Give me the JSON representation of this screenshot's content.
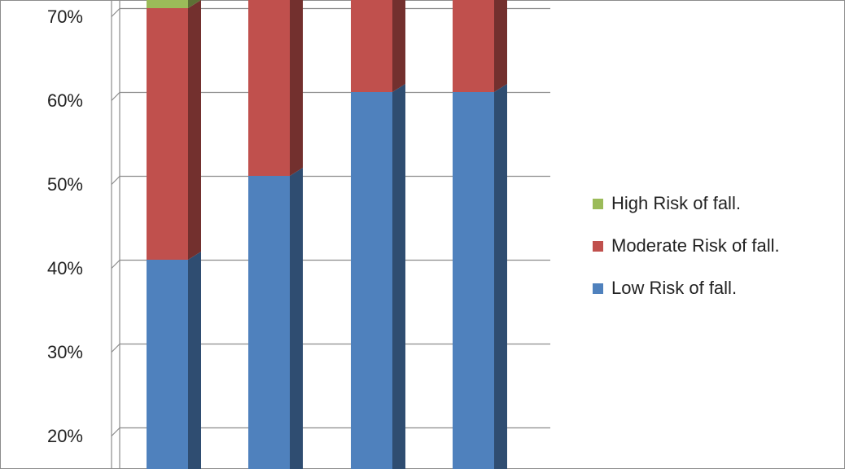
{
  "chart_data": {
    "type": "bar",
    "stacked": true,
    "three_d": true,
    "categories": [
      "",
      "",
      "",
      ""
    ],
    "series": [
      {
        "name": "Low Risk of fall.",
        "color": "#4f81bd",
        "values": [
          40,
          50,
          60,
          60
        ]
      },
      {
        "name": "Moderate Risk of fall.",
        "color": "#c0504d",
        "values": [
          30,
          25,
          15,
          15
        ]
      },
      {
        "name": "High Risk of fall.",
        "color": "#9bbb59",
        "values": [
          5,
          0,
          0,
          0
        ]
      }
    ],
    "y_ticks": [
      "20%",
      "30%",
      "40%",
      "50%",
      "60%",
      "70%"
    ],
    "ylim_visible": [
      17,
      72
    ],
    "grid": true,
    "legend_position": "right",
    "legend_order": [
      "High Risk of fall.",
      "Moderate Risk of fall.",
      "Low Risk of fall."
    ],
    "title": "",
    "xlabel": "",
    "ylabel": ""
  }
}
